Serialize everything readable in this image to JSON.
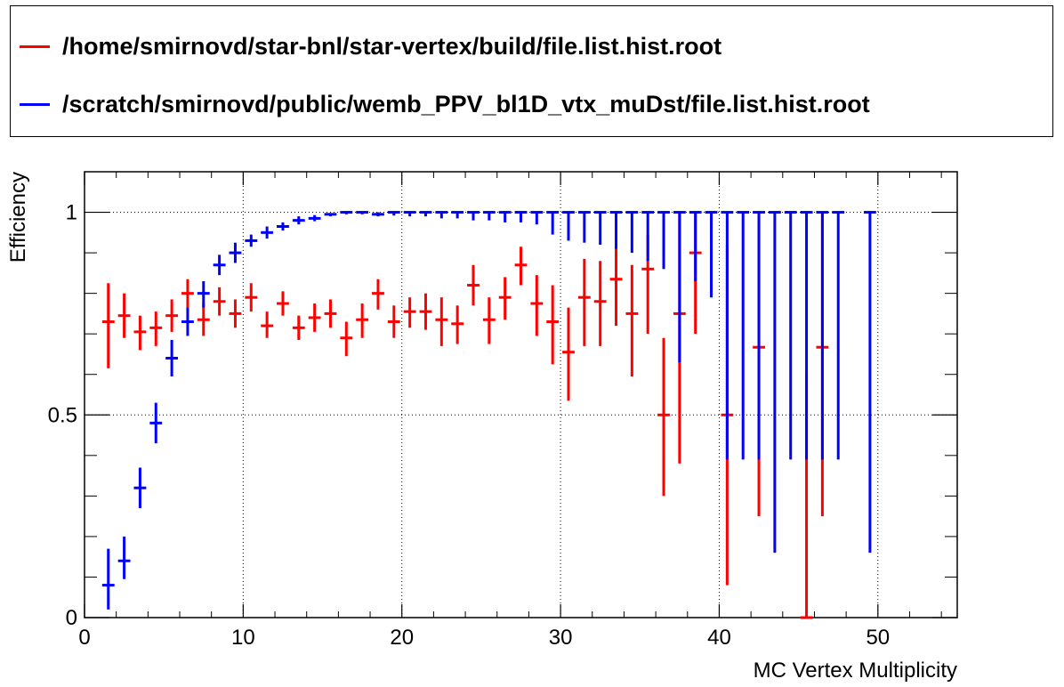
{
  "legend": {
    "entries": [
      {
        "label": "/home/smirnovd/star-bnl/star-vertex/build/file.list.hist.root",
        "color": "#ff0000"
      },
      {
        "label": "/scratch/smirnovd/public/wemb_PPV_bl1D_vtx_muDst/file.list.hist.root",
        "color": "#0000ff"
      }
    ]
  },
  "chart_data": {
    "type": "scatter",
    "title": "",
    "xlabel": "MC Vertex Multiplicity",
    "ylabel": "Efficiency",
    "xlim": [
      0,
      55
    ],
    "ylim": [
      0,
      1.1
    ],
    "x_ticks": [
      "0",
      "10",
      "20",
      "30",
      "40",
      "50"
    ],
    "y_ticks": [
      "0",
      "0.5",
      "1"
    ],
    "grid": true,
    "legend_position": "top",
    "series": [
      {
        "label": "/home/smirnovd/star-bnl/star-vertex/build/file.list.hist.root",
        "color": "#ff0000",
        "x": [
          1.5,
          2.5,
          3.5,
          4.5,
          5.5,
          6.5,
          7.5,
          8.5,
          9.5,
          10.5,
          11.5,
          12.5,
          13.5,
          14.5,
          15.5,
          16.5,
          17.5,
          18.5,
          19.5,
          20.5,
          21.5,
          22.5,
          23.5,
          24.5,
          25.5,
          26.5,
          27.5,
          28.5,
          29.5,
          30.5,
          31.5,
          32.5,
          33.5,
          34.5,
          35.5,
          36.5,
          37.5,
          38.5,
          40.5,
          42.5,
          45.5,
          46.5
        ],
        "y": [
          0.73,
          0.745,
          0.705,
          0.715,
          0.745,
          0.8,
          0.735,
          0.78,
          0.75,
          0.79,
          0.72,
          0.775,
          0.715,
          0.74,
          0.75,
          0.69,
          0.735,
          0.8,
          0.73,
          0.755,
          0.755,
          0.735,
          0.725,
          0.82,
          0.735,
          0.79,
          0.87,
          0.775,
          0.73,
          0.655,
          0.79,
          0.78,
          0.835,
          0.75,
          0.86,
          0.5,
          0.75,
          0.9,
          0.5,
          0.667,
          0.0,
          0.667
        ],
        "y_low": [
          0.615,
          0.69,
          0.66,
          0.67,
          0.705,
          0.765,
          0.695,
          0.745,
          0.715,
          0.755,
          0.69,
          0.745,
          0.685,
          0.705,
          0.715,
          0.645,
          0.69,
          0.76,
          0.69,
          0.715,
          0.71,
          0.67,
          0.675,
          0.77,
          0.675,
          0.735,
          0.82,
          0.695,
          0.625,
          0.535,
          0.67,
          0.67,
          0.72,
          0.595,
          0.7,
          0.3,
          0.38,
          0.7,
          0.08,
          0.25,
          0.0,
          0.25
        ],
        "y_high": [
          0.825,
          0.8,
          0.745,
          0.755,
          0.785,
          0.835,
          0.775,
          0.815,
          0.785,
          0.825,
          0.755,
          0.805,
          0.745,
          0.775,
          0.785,
          0.73,
          0.775,
          0.835,
          0.77,
          0.79,
          0.8,
          0.79,
          0.77,
          0.87,
          0.79,
          0.84,
          0.915,
          0.845,
          0.82,
          0.765,
          0.885,
          0.88,
          0.915,
          0.87,
          0.945,
          0.69,
          1.0,
          1.0,
          0.92,
          1.0,
          0.6,
          1.0
        ]
      },
      {
        "label": "/scratch/smirnovd/public/wemb_PPV_bl1D_vtx_muDst/file.list.hist.root",
        "color": "#0000ff",
        "x": [
          1.5,
          2.5,
          3.5,
          4.5,
          5.5,
          6.5,
          7.5,
          8.5,
          9.5,
          10.5,
          11.5,
          12.5,
          13.5,
          14.5,
          15.5,
          16.5,
          17.5,
          18.5,
          19.5,
          20.5,
          21.5,
          22.5,
          23.5,
          24.5,
          25.5,
          26.5,
          27.5,
          28.5,
          29.5,
          30.5,
          31.5,
          32.5,
          33.5,
          34.5,
          35.5,
          36.5,
          37.5,
          38.5,
          39.5,
          40.5,
          41.5,
          42.5,
          43.5,
          44.5,
          45.5,
          46.5,
          47.5,
          49.5
        ],
        "y": [
          0.08,
          0.14,
          0.32,
          0.48,
          0.64,
          0.73,
          0.8,
          0.87,
          0.9,
          0.93,
          0.95,
          0.965,
          0.98,
          0.985,
          0.995,
          1.0,
          1.0,
          0.995,
          1.0,
          1.0,
          1.0,
          1.0,
          1.0,
          1.0,
          1.0,
          1.0,
          1.0,
          1.0,
          1.0,
          1.0,
          1.0,
          1.0,
          1.0,
          1.0,
          1.0,
          1.0,
          1.0,
          1.0,
          1.0,
          1.0,
          1.0,
          1.0,
          1.0,
          1.0,
          1.0,
          1.0,
          1.0,
          1.0
        ],
        "y_low": [
          0.02,
          0.095,
          0.27,
          0.43,
          0.595,
          0.695,
          0.765,
          0.845,
          0.875,
          0.915,
          0.935,
          0.955,
          0.97,
          0.978,
          0.99,
          0.995,
          0.995,
          0.99,
          0.992,
          0.99,
          0.99,
          0.985,
          0.985,
          0.98,
          0.98,
          0.975,
          0.975,
          0.97,
          0.945,
          0.93,
          0.925,
          0.92,
          0.91,
          0.9,
          0.88,
          0.86,
          0.63,
          0.83,
          0.79,
          0.39,
          0.39,
          0.39,
          0.16,
          0.39,
          0.39,
          0.39,
          0.39,
          0.16
        ],
        "y_high": [
          0.17,
          0.2,
          0.37,
          0.53,
          0.685,
          0.765,
          0.83,
          0.895,
          0.925,
          0.945,
          0.965,
          0.975,
          0.99,
          0.993,
          0.998,
          1.0,
          1.0,
          1.0,
          1.0,
          1.0,
          1.0,
          1.0,
          1.0,
          1.0,
          1.0,
          1.0,
          1.0,
          1.0,
          1.0,
          1.0,
          1.0,
          1.0,
          1.0,
          1.0,
          1.0,
          1.0,
          1.0,
          1.0,
          1.0,
          1.0,
          1.0,
          1.0,
          1.0,
          1.0,
          1.0,
          1.0,
          1.0,
          1.0
        ]
      }
    ]
  }
}
